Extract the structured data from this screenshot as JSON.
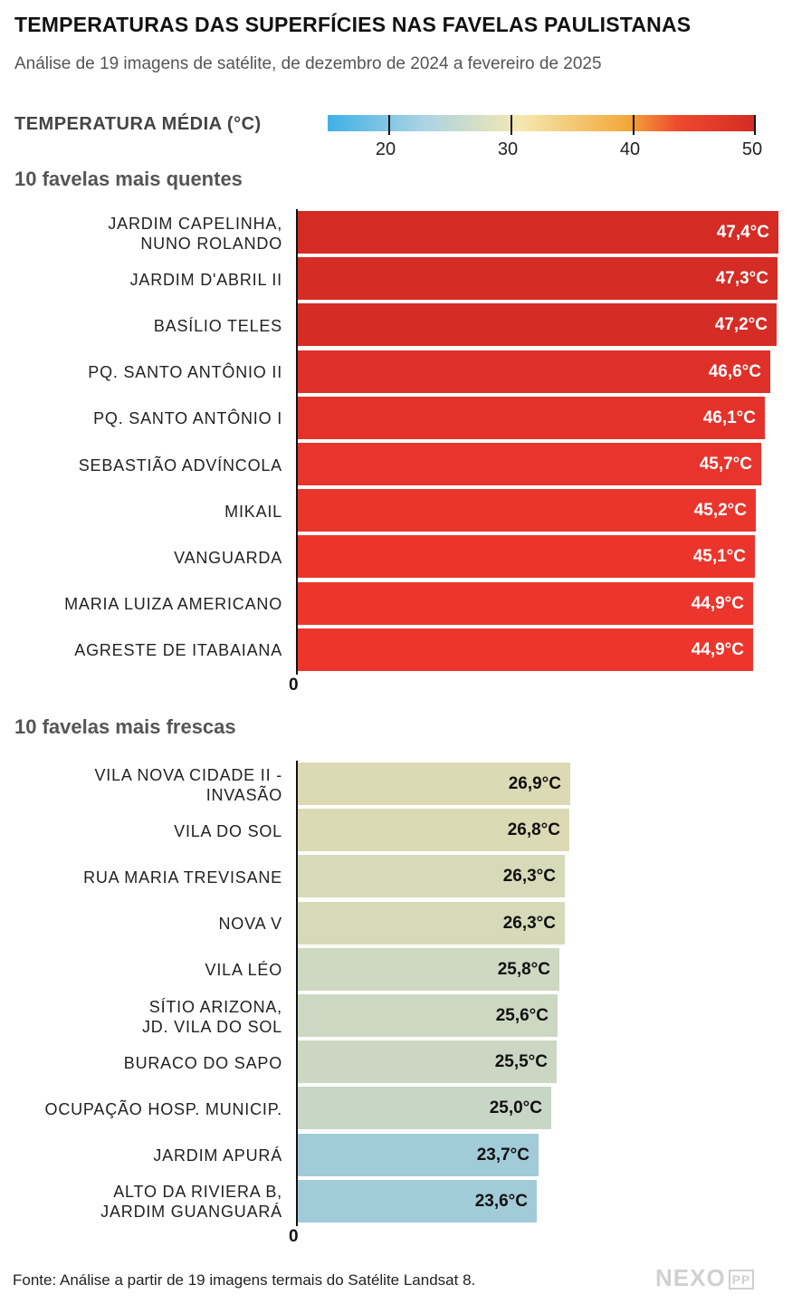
{
  "title": "TEMPERATURAS DAS SUPERFÍCIES NAS FAVELAS PAULISTANAS",
  "subtitle": "Análise de 19 imagens de satélite, de dezembro de 2024 a fevereiro de 2025",
  "legend": {
    "label": "TEMPERATURA MÉDIA (°C)",
    "ticks": [
      "20",
      "30",
      "40",
      "50"
    ],
    "scale_min": 15,
    "scale_max": 50,
    "colors": [
      "#3fb0e6",
      "#a9d3e3",
      "#f5e8b0",
      "#f3a93a",
      "#ee4a2e",
      "#d42b25"
    ]
  },
  "source": "Fonte: Análise a partir de 19 imagens termais do Satélite Landsat 8.",
  "logo": {
    "text": "NEXO",
    "badge": "PP"
  },
  "chart_data": [
    {
      "type": "bar",
      "orientation": "horizontal",
      "title": "10 favelas mais quentes",
      "axis_zero_label": "0",
      "categories": [
        "JARDIM CAPELINHA,\nNUNO ROLANDO",
        "JARDIM D'ABRIL II",
        "BASÍLIO TELES",
        "PQ. SANTO ANTÔNIO II",
        "PQ. SANTO ANTÔNIO I",
        "SEBASTIÃO ADVÍNCOLA",
        "MIKAIL",
        "VANGUARDA",
        "MARIA LUIZA AMERICANO",
        "AGRESTE DE ITABAIANA"
      ],
      "values": [
        47.4,
        47.3,
        47.2,
        46.6,
        46.1,
        45.7,
        45.2,
        45.1,
        44.9,
        44.9
      ],
      "value_labels": [
        "47,4°C",
        "47,3°C",
        "47,2°C",
        "46,6°C",
        "46,1°C",
        "45,7°C",
        "45,2°C",
        "45,1°C",
        "44,9°C",
        "44,9°C"
      ],
      "colors": [
        "#d42b25",
        "#d52c25",
        "#d62c26",
        "#e0302a",
        "#e4322b",
        "#e8342c",
        "#ea352c",
        "#eb352c",
        "#ec362d",
        "#ec362d"
      ],
      "xlim": [
        0,
        47.4
      ]
    },
    {
      "type": "bar",
      "orientation": "horizontal",
      "title": "10 favelas mais frescas",
      "axis_zero_label": "0",
      "categories": [
        "VILA NOVA CIDADE II -\nINVASÃO",
        "VILA DO SOL",
        "RUA MARIA TREVISANE",
        "NOVA V",
        "VILA LÉO",
        "SÍTIO ARIZONA,\nJD. VILA DO SOL",
        "BURACO DO SAPO",
        "OCUPAÇÃO HOSP. MUNICIP.",
        "JARDIM APURÁ",
        "ALTO DA RIVIERA B,\nJARDIM GUANGUARÁ"
      ],
      "values": [
        26.9,
        26.8,
        26.3,
        26.3,
        25.8,
        25.6,
        25.5,
        25.0,
        23.7,
        23.6
      ],
      "value_labels": [
        "26,9°C",
        "26,8°C",
        "26,3°C",
        "26,3°C",
        "25,8°C",
        "25,6°C",
        "25,5°C",
        "25,0°C",
        "23,7°C",
        "23,6°C"
      ],
      "colors": [
        "#dcdab4",
        "#dcdab4",
        "#d6dab8",
        "#d6dab8",
        "#cfd8c0",
        "#cdd8c2",
        "#ccd7c3",
        "#c8d6c6",
        "#a2cbd8",
        "#a2cbd8"
      ],
      "xlim": [
        0,
        47.4
      ]
    }
  ]
}
